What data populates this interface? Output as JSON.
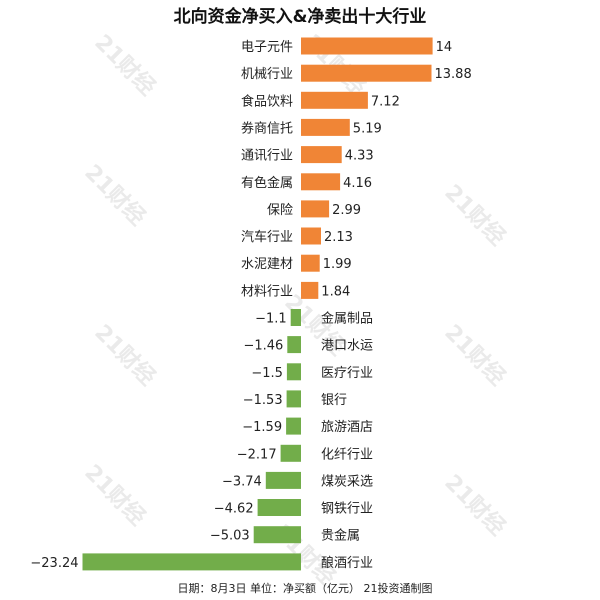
{
  "chart_data": {
    "type": "bar",
    "orientation": "horizontal",
    "title": "北向资金净买入&净卖出十大行业",
    "categories": [
      "电子元件",
      "机械行业",
      "食品饮料",
      "券商信托",
      "通讯行业",
      "有色金属",
      "保险",
      "汽车行业",
      "水泥建材",
      "材料行业",
      "金属制品",
      "港口水运",
      "医疗行业",
      "银行",
      "旅游酒店",
      "化纤行业",
      "煤炭采选",
      "钢铁行业",
      "贵金属",
      "酿酒行业"
    ],
    "values": [
      14,
      13.88,
      7.12,
      5.19,
      4.33,
      4.16,
      2.99,
      2.13,
      1.99,
      1.84,
      -1.1,
      -1.46,
      -1.5,
      -1.53,
      -1.59,
      -2.17,
      -3.74,
      -4.62,
      -5.03,
      -23.24
    ],
    "value_labels": [
      "14",
      "13.88",
      "7.12",
      "5.19",
      "4.33",
      "4.16",
      "2.99",
      "2.13",
      "1.99",
      "1.84",
      "−1.1",
      "−1.46",
      "−1.5",
      "−1.53",
      "−1.59",
      "−2.17",
      "−3.74",
      "−4.62",
      "−5.03",
      "−23.24"
    ],
    "colors": {
      "positive": "#f08536",
      "negative": "#72ad4a"
    },
    "grid": false,
    "legend": "none"
  },
  "footer": "日期：8月3日 单位：净买额（亿元） 21投资通制图",
  "watermark": "21财经"
}
